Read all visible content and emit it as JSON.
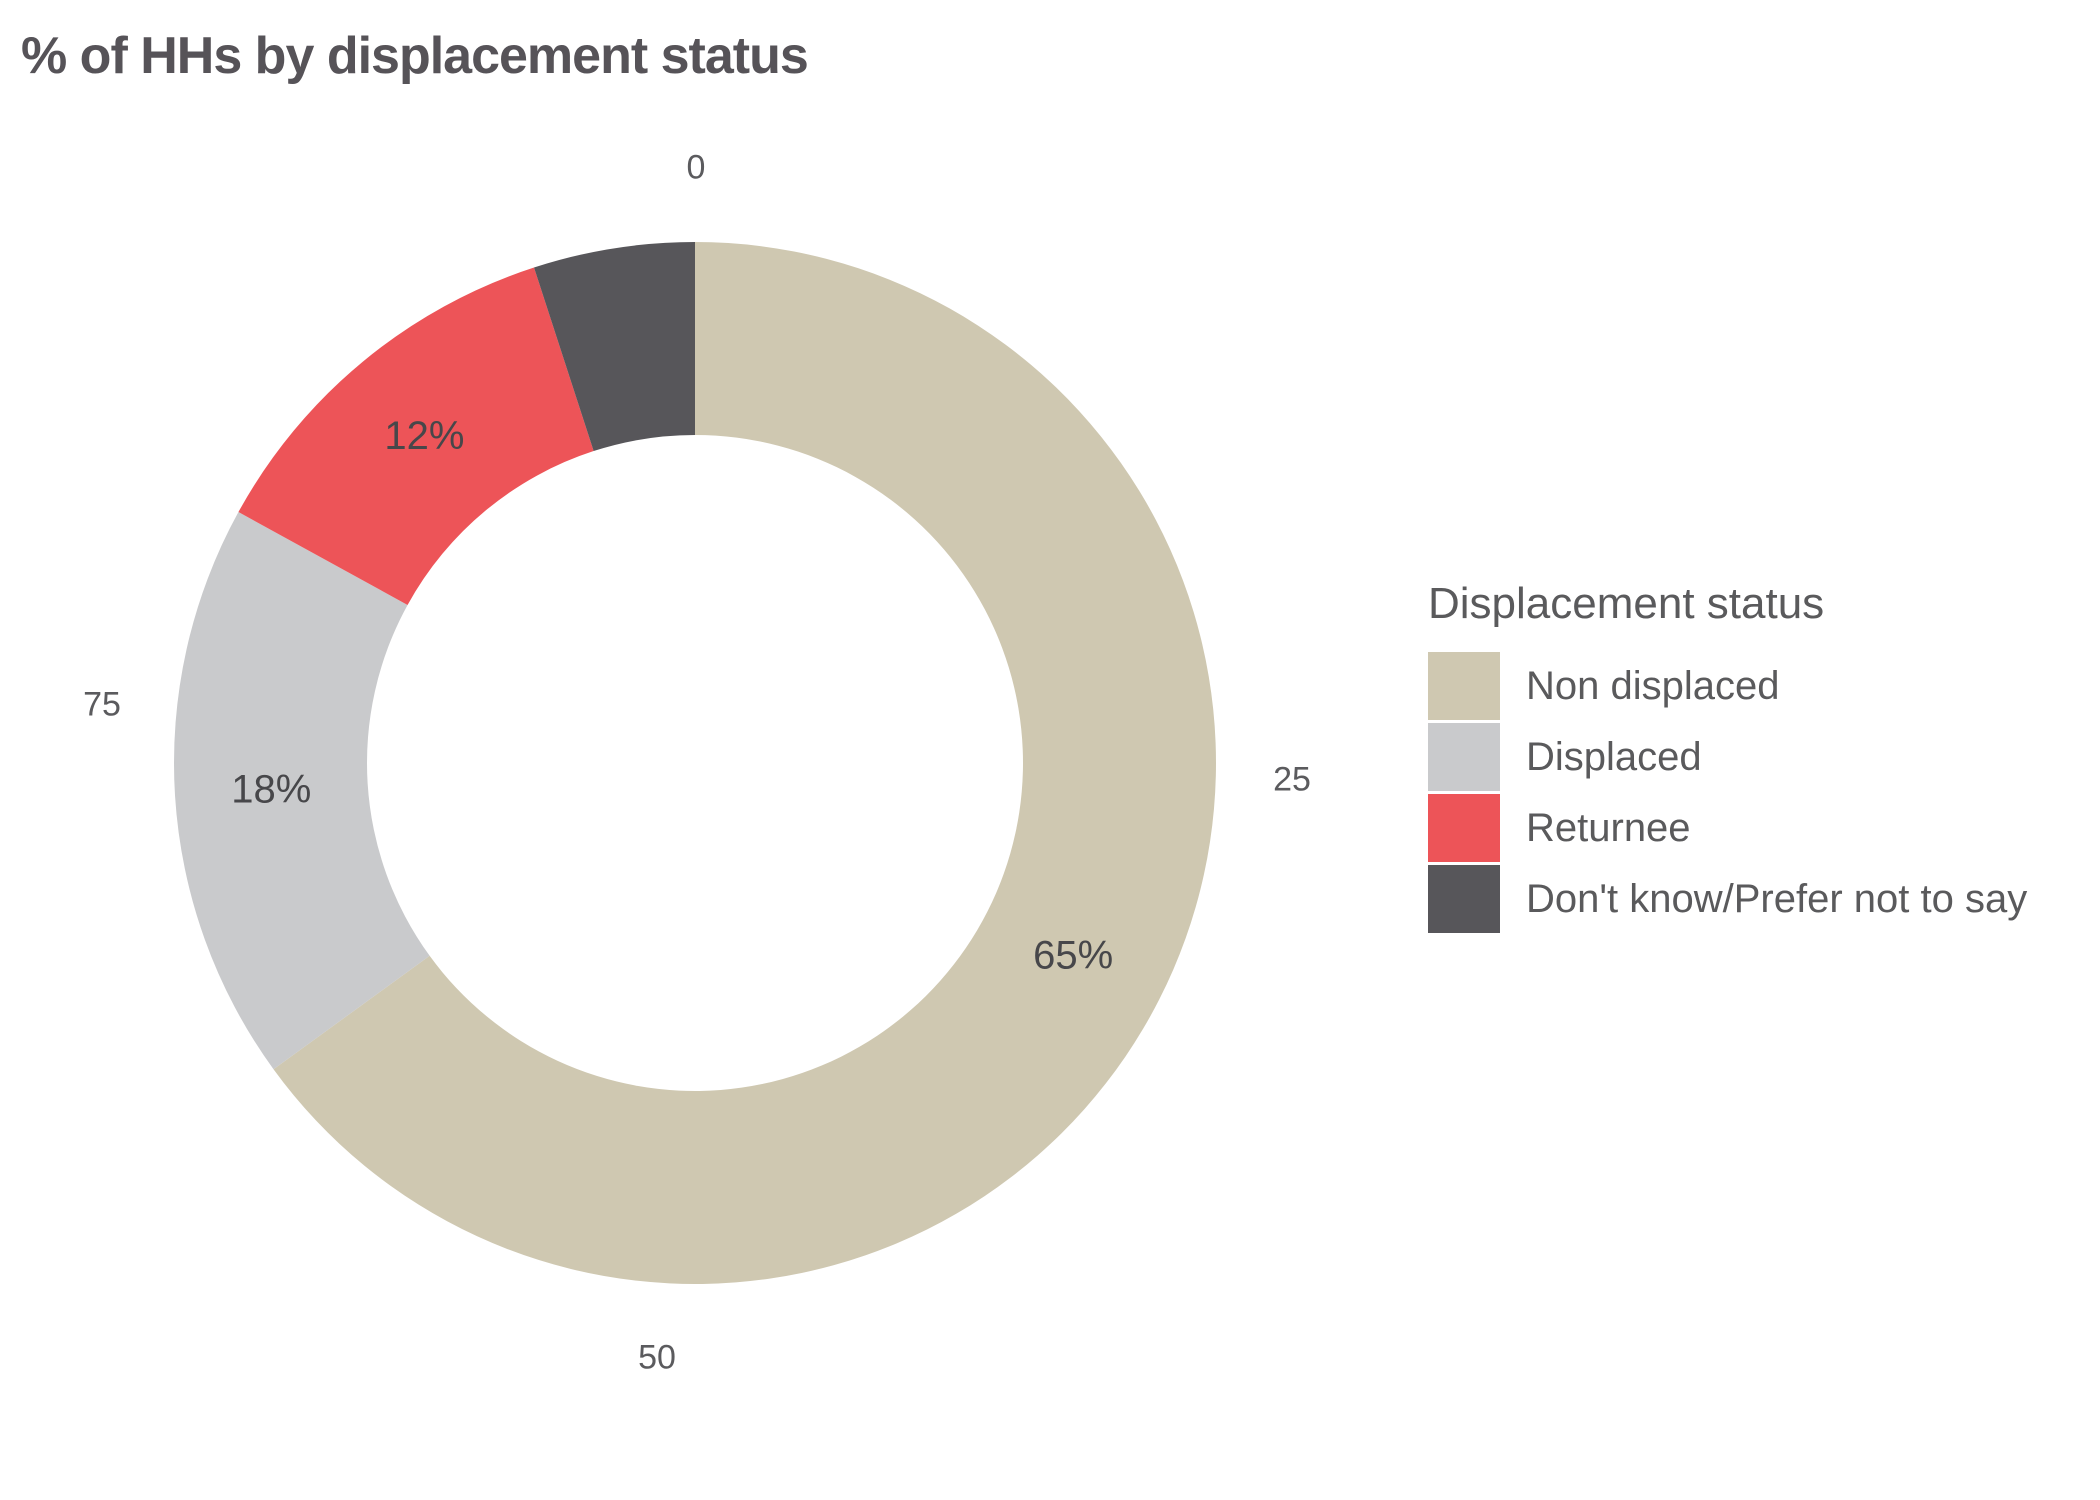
{
  "title": "% of HHs by displacement status",
  "chart_data": {
    "type": "pie",
    "variant": "donut",
    "title": "% of HHs by displacement status",
    "categories": [
      "Non displaced",
      "Displaced",
      "Returnee",
      "Don't know/Prefer not to say"
    ],
    "values": [
      65,
      18,
      12,
      5
    ],
    "slice_labels": [
      "65%",
      "18%",
      "12%",
      ""
    ],
    "colors": [
      "#CFC8B1",
      "#C9CACC",
      "#ED5458",
      "#57565A"
    ],
    "unit": "percent of households",
    "start_angle_deg": 0,
    "direction": "clockwise",
    "inner_radius_ratio": 0.63,
    "polar_axis_ticks": [
      "0",
      "25",
      "50",
      "75"
    ],
    "legend_title": "Displacement status",
    "legend_position": "right",
    "grid": "off"
  },
  "ticks": {
    "t0": "0",
    "t25": "25",
    "t50": "50",
    "t75": "75"
  },
  "legend": {
    "title": "Displacement status",
    "items": [
      {
        "label": "Non displaced",
        "color": "#CFC8B1"
      },
      {
        "label": "Displaced",
        "color": "#C9CACC"
      },
      {
        "label": "Returnee",
        "color": "#ED5458"
      },
      {
        "label": "Don't know/Prefer not to say",
        "color": "#57565A"
      }
    ]
  },
  "colors": {
    "title_text": "#565358",
    "tick_text": "#5B5B5E",
    "slice_label_text": "#47474A",
    "background": "#FFFFFF"
  }
}
